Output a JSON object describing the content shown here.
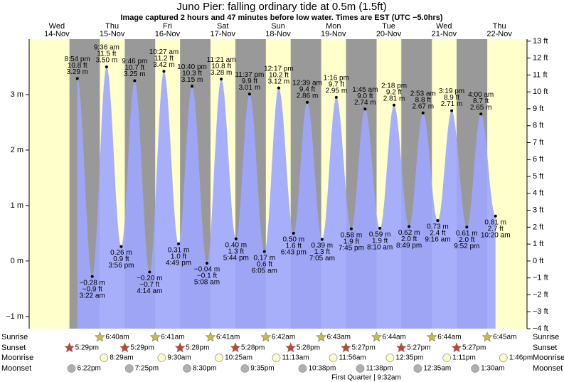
{
  "chart_data": {
    "type": "tide",
    "title": "Juno Pier: falling  ordinary tide at 0.5m (1.5ft)",
    "subtitle": "Image captured 2 hours and 47 minutes before low water. Times are EST (UTC −5.0hrs)",
    "ylim": [
      -1.22,
      4.0
    ],
    "yticks": [
      {
        "value": -1,
        "label": "−1 m"
      },
      {
        "value": 0,
        "label": "0 m"
      },
      {
        "value": 1,
        "label": "1 m"
      },
      {
        "value": 2,
        "label": "2 m"
      },
      {
        "value": 3,
        "label": "3 m"
      }
    ],
    "y2lim": [
      -4,
      13.12
    ],
    "y2ticks": [
      {
        "value": -4,
        "label": "−4 ft"
      },
      {
        "value": -3,
        "label": "−3 ft"
      },
      {
        "value": -2,
        "label": "−2 ft"
      },
      {
        "value": -1,
        "label": "−1 ft"
      },
      {
        "value": 0,
        "label": "0 ft"
      },
      {
        "value": 1,
        "label": "1 ft"
      },
      {
        "value": 2,
        "label": "2 ft"
      },
      {
        "value": 3,
        "label": "3 ft"
      },
      {
        "value": 4,
        "label": "4 ft"
      },
      {
        "value": 5,
        "label": "5 ft"
      },
      {
        "value": 6,
        "label": "6 ft"
      },
      {
        "value": 7,
        "label": "7 ft"
      },
      {
        "value": 8,
        "label": "8 ft"
      },
      {
        "value": 9,
        "label": "9 ft"
      },
      {
        "value": 10,
        "label": "10 ft"
      },
      {
        "value": 11,
        "label": "11 ft"
      },
      {
        "value": 12,
        "label": "12 ft"
      },
      {
        "value": 13,
        "label": "13 ft"
      }
    ],
    "row_labels": [
      "Sunrise",
      "Sunset",
      "Moonrise",
      "Moonset"
    ],
    "moon_phase": "First Quarter | 9:32am",
    "colors": {
      "day": "#ffffcc",
      "night": "#999999",
      "water": "#9fa6ff",
      "day_label": "#d40000",
      "sunrise": "#c8bd4a",
      "sunset": "#c8422a",
      "moonrise": "#ffffc8",
      "moonset": "#b0b0b0"
    },
    "days": [
      {
        "name": "Wed",
        "date": "14-Nov",
        "sunset": "5:29pm",
        "moonset": "6:22pm",
        "tides": [
          {
            "time": "8:54 pm",
            "value": 3.29,
            "value_label": "3.29 m",
            "ft_label": "10.8 ft"
          }
        ]
      },
      {
        "name": "Thu",
        "date": "15-Nov",
        "sunrise": "6:40am",
        "sunset": "5:29pm",
        "moonrise": "8:29am",
        "moonset": "7:25pm",
        "tides": [
          {
            "time": "3:22 am",
            "value": -0.28,
            "value_label": "−0.28 m",
            "ft_label": "−0.9 ft"
          },
          {
            "time": "9:36 am",
            "value": 3.5,
            "value_label": "3.50 m",
            "ft_label": "11.5 ft"
          },
          {
            "time": "3:56 pm",
            "value": 0.26,
            "value_label": "0.26 m",
            "ft_label": "0.9 ft"
          },
          {
            "time": "9:46 pm",
            "value": 3.25,
            "value_label": "3.25 m",
            "ft_label": "10.7 ft"
          }
        ]
      },
      {
        "name": "Fri",
        "date": "16-Nov",
        "sunrise": "6:41am",
        "sunset": "5:28pm",
        "moonrise": "9:30am",
        "moonset": "8:30pm",
        "tides": [
          {
            "time": "4:14 am",
            "value": -0.2,
            "value_label": "−0.20 m",
            "ft_label": "−0.7 ft"
          },
          {
            "time": "10:27 am",
            "value": 3.42,
            "value_label": "3.42 m",
            "ft_label": "11.2 ft"
          },
          {
            "time": "4:49 pm",
            "value": 0.31,
            "value_label": "0.31 m",
            "ft_label": "1.0 ft"
          },
          {
            "time": "10:40 pm",
            "value": 3.15,
            "value_label": "3.15 m",
            "ft_label": "10.3 ft"
          }
        ]
      },
      {
        "name": "Sat",
        "date": "17-Nov",
        "sunrise": "6:41am",
        "sunset": "5:28pm",
        "moonrise": "10:25am",
        "moonset": "9:35pm",
        "tides": [
          {
            "time": "5:08 am",
            "value": -0.04,
            "value_label": "−0.04 m",
            "ft_label": "−0.1 ft"
          },
          {
            "time": "11:21 am",
            "value": 3.28,
            "value_label": "3.28 m",
            "ft_label": "10.8 ft"
          },
          {
            "time": "5:44 pm",
            "value": 0.4,
            "value_label": "0.40 m",
            "ft_label": "1.3 ft"
          },
          {
            "time": "11:37 pm",
            "value": 3.01,
            "value_label": "3.01 m",
            "ft_label": "9.9 ft"
          }
        ]
      },
      {
        "name": "Sun",
        "date": "18-Nov",
        "sunrise": "6:42am",
        "sunset": "5:28pm",
        "moonrise": "11:13am",
        "moonset": "10:38pm",
        "tides": [
          {
            "time": "6:05 am",
            "value": 0.17,
            "value_label": "0.17 m",
            "ft_label": "0.6 ft"
          },
          {
            "time": "12:17 pm",
            "value": 3.12,
            "value_label": "3.12 m",
            "ft_label": "10.2 ft"
          },
          {
            "time": "6:43 pm",
            "value": 0.5,
            "value_label": "0.50 m",
            "ft_label": "1.6 ft"
          }
        ]
      },
      {
        "name": "Mon",
        "date": "19-Nov",
        "sunrise": "6:43am",
        "sunset": "5:27pm",
        "moonrise": "11:56am",
        "moonset": "11:38pm",
        "tides": [
          {
            "time": "12:39 am",
            "value": 2.86,
            "value_label": "2.86 m",
            "ft_label": "9.4 ft"
          },
          {
            "time": "7:05 am",
            "value": 0.39,
            "value_label": "0.39 m",
            "ft_label": "1.3 ft"
          },
          {
            "time": "1:16 pm",
            "value": 2.95,
            "value_label": "2.95 m",
            "ft_label": "9.7 ft"
          },
          {
            "time": "7:45 pm",
            "value": 0.58,
            "value_label": "0.58 m",
            "ft_label": "1.9 ft"
          }
        ]
      },
      {
        "name": "Tue",
        "date": "20-Nov",
        "sunrise": "6:44am",
        "sunset": "5:27pm",
        "moonrise": "12:35pm",
        "tides": [
          {
            "time": "1:45 am",
            "value": 2.74,
            "value_label": "2.74 m",
            "ft_label": "9.0 ft"
          },
          {
            "time": "8:10 am",
            "value": 0.59,
            "value_label": "0.59 m",
            "ft_label": "1.9 ft"
          },
          {
            "time": "2:18 pm",
            "value": 2.81,
            "value_label": "2.81 m",
            "ft_label": "9.2 ft"
          },
          {
            "time": "8:49 pm",
            "value": 0.62,
            "value_label": "0.62 m",
            "ft_label": "2.0 ft"
          }
        ]
      },
      {
        "name": "Wed",
        "date": "21-Nov",
        "sunrise": "6:44am",
        "sunset": "5:27pm",
        "moonrise": "1:11pm",
        "moonset": "12:35am",
        "tides": [
          {
            "time": "2:53 am",
            "value": 2.67,
            "value_label": "2.67 m",
            "ft_label": "8.8 ft"
          },
          {
            "time": "9:16 am",
            "value": 0.73,
            "value_label": "0.73 m",
            "ft_label": "2.4 ft"
          },
          {
            "time": "3:19 pm",
            "value": 2.71,
            "value_label": "2.71 m",
            "ft_label": "8.9 ft"
          },
          {
            "time": "9:52 pm",
            "value": 0.61,
            "value_label": "0.61 m",
            "ft_label": "2.0 ft"
          }
        ]
      },
      {
        "name": "Thu",
        "date": "22-Nov",
        "sunrise": "6:45am",
        "moonrise": "1:46pm",
        "moonset": "1:30am",
        "tides": [
          {
            "time": "4:00 am",
            "value": 2.65,
            "value_label": "2.65 m",
            "ft_label": "8.7 ft"
          },
          {
            "time": "10:20 am",
            "value": 0.81,
            "value_label": "0.81 m",
            "ft_label": "2.7 ft"
          }
        ]
      }
    ]
  }
}
